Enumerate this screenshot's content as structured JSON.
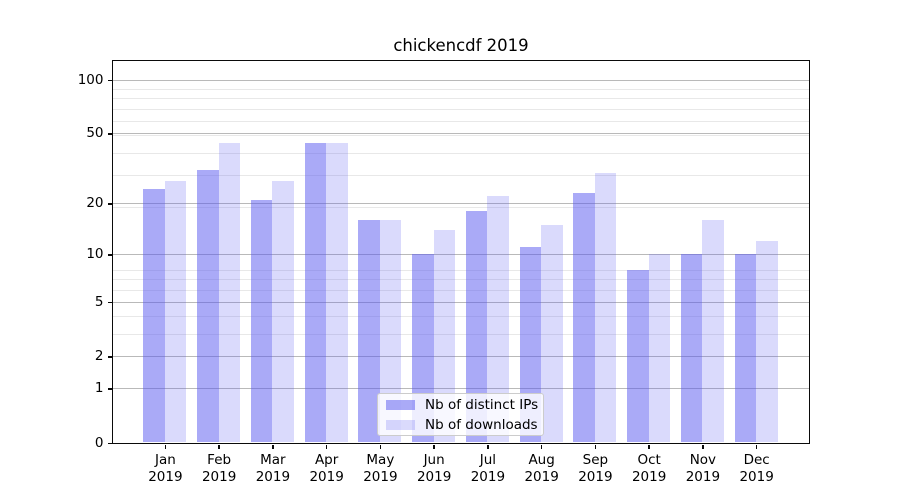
{
  "figure": {
    "title": "chickencdf 2019"
  },
  "colors": {
    "bar_ips": "rgba(85,85,240,0.5)",
    "bar_downloads": "rgba(85,85,240,0.22)",
    "grid_major": "#b9b9b9",
    "grid_minor": "#e8e8e8",
    "spine": "#0a0a0a",
    "legend_bg": "rgba(255,255,255,0.8)",
    "legend_border": "#cccccc"
  },
  "chart_data": {
    "type": "bar",
    "title": "chickencdf 2019",
    "xlabel": "",
    "ylabel": "",
    "scale": "log1p: y position proportional to log10(1+value)",
    "categories": [
      "Jan",
      "Feb",
      "Mar",
      "Apr",
      "May",
      "Jun",
      "Jul",
      "Aug",
      "Sep",
      "Oct",
      "Nov",
      "Dec"
    ],
    "category_year": "2019",
    "series": [
      {
        "name": "Nb of distinct IPs",
        "values": [
          24,
          31,
          21,
          44,
          16,
          10,
          18,
          11,
          23,
          8,
          10,
          10
        ]
      },
      {
        "name": "Nb of downloads",
        "values": [
          27,
          44,
          27,
          44,
          16,
          14,
          22,
          15,
          30,
          10,
          16,
          12
        ]
      }
    ],
    "y_ticks": [
      0,
      1,
      2,
      5,
      10,
      20,
      50,
      100
    ],
    "minor_grid_values": [
      3,
      4,
      6,
      7,
      8,
      19,
      29,
      39,
      49,
      59,
      69,
      79,
      89
    ],
    "ylim": [
      0,
      128
    ],
    "grid": true,
    "legend_position": "lower center"
  }
}
